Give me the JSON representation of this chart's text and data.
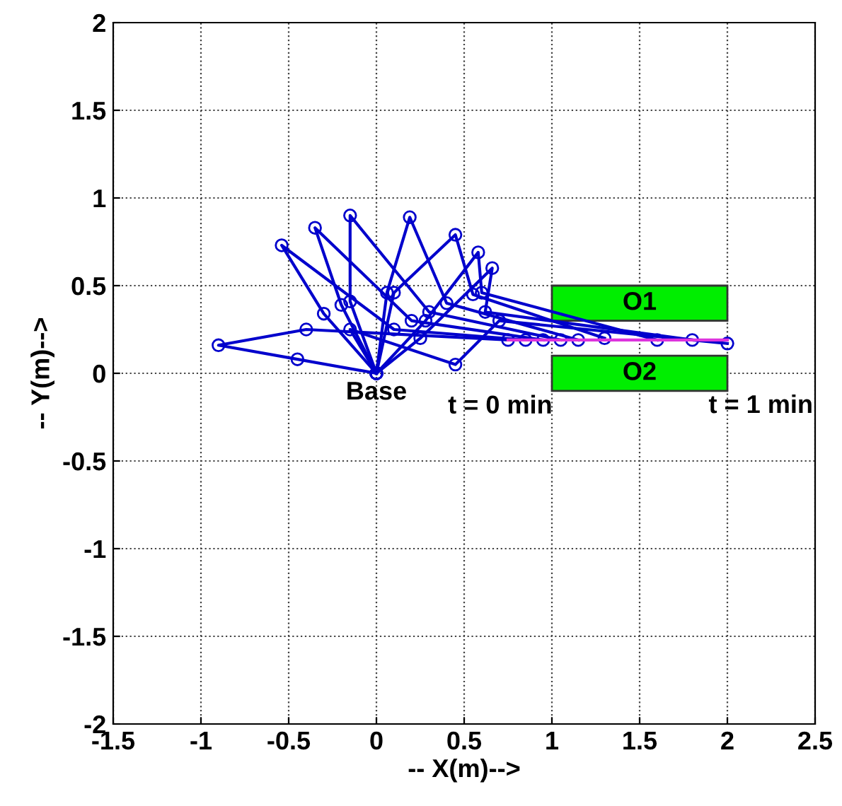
{
  "chart_data": {
    "type": "line",
    "xlabel": "-- X(m)-->",
    "ylabel": "-- Y(m)-->",
    "xlim": [
      -1.5,
      2.5
    ],
    "ylim": [
      -2,
      2
    ],
    "xticks": [
      -1.5,
      -1,
      -0.5,
      0,
      0.5,
      1,
      1.5,
      2,
      2.5
    ],
    "yticks": [
      -2,
      -1.5,
      -1,
      -0.5,
      0,
      0.5,
      1,
      1.5,
      2
    ],
    "grid": true,
    "marker": "circle",
    "line_style": "solid",
    "series": [
      {
        "type": "area",
        "name": "O1",
        "color": "#00ee00",
        "marker": "none",
        "x": [
          1,
          2,
          2,
          1,
          1
        ],
        "values": [
          0.3,
          0.3,
          0.5,
          0.5,
          0.3
        ]
      },
      {
        "type": "area",
        "name": "O2",
        "color": "#00ee00",
        "marker": "none",
        "x": [
          1,
          2,
          2,
          1,
          1
        ],
        "values": [
          -0.1,
          -0.1,
          0.1,
          0.1,
          -0.1
        ]
      },
      {
        "color": "#0000cc",
        "x": [
          0,
          -0.45,
          -0.9,
          -0.4,
          0.75
        ],
        "values": [
          0,
          0.08,
          0.16,
          0.25,
          0.19
        ]
      },
      {
        "color": "#0000cc",
        "x": [
          0,
          -0.3,
          -0.54,
          0.1,
          0.85
        ],
        "values": [
          0,
          0.34,
          0.73,
          0.25,
          0.19
        ]
      },
      {
        "color": "#0000cc",
        "x": [
          0,
          -0.2,
          -0.35,
          0.2,
          0.95
        ],
        "values": [
          0,
          0.39,
          0.83,
          0.3,
          0.19
        ]
      },
      {
        "color": "#0000cc",
        "x": [
          0,
          -0.15,
          -0.15,
          0.3,
          1.05
        ],
        "values": [
          0,
          0.41,
          0.9,
          0.35,
          0.19
        ]
      },
      {
        "color": "#0000cc",
        "x": [
          0,
          0.06,
          0.19,
          0.4,
          1.15
        ],
        "values": [
          0,
          0.46,
          0.89,
          0.4,
          0.19
        ]
      },
      {
        "color": "#0000cc",
        "x": [
          0,
          0.1,
          0.45,
          0.55,
          1.3
        ],
        "values": [
          0,
          0.46,
          0.79,
          0.45,
          0.2
        ]
      },
      {
        "color": "#0000cc",
        "x": [
          0,
          0.28,
          0.58,
          0.6,
          1.6
        ],
        "values": [
          0,
          0.3,
          0.69,
          0.46,
          0.19
        ]
      },
      {
        "color": "#0000cc",
        "x": [
          0,
          0.25,
          0.66,
          0.62,
          1.8
        ],
        "values": [
          0,
          0.2,
          0.6,
          0.35,
          0.19
        ]
      },
      {
        "color": "#0000cc",
        "x": [
          0,
          -0.15,
          0.45,
          0.7,
          2
        ],
        "values": [
          0,
          0.25,
          0.05,
          0.3,
          0.17
        ]
      },
      {
        "color": "#dd33dd",
        "marker": "none",
        "x": [
          0.75,
          2
        ],
        "values": [
          0.19,
          0.19
        ]
      }
    ],
    "annotations": [
      {
        "text": "Base",
        "x": 0,
        "y": 0
      },
      {
        "text": "t = 0 min",
        "x": 0.75,
        "y": 0.19
      },
      {
        "text": "t = 1 min",
        "x": 2,
        "y": 0.17
      }
    ]
  }
}
